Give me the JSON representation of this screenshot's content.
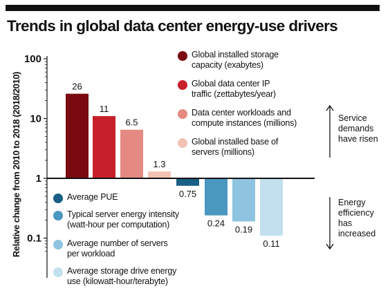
{
  "title": "Trends in global data center energy-use drivers",
  "y_axis_label": "Relative change from 2010 to 2018 (2018/2010)",
  "side_labels": {
    "up": "Service\ndemands\nhave risen",
    "down": "Energy\nefficiency\nhas\nincreased"
  },
  "chart_data": {
    "type": "bar",
    "title": "Trends in global data center energy-use drivers",
    "ylabel": "Relative change from 2010 to 2018 (2018/2010)",
    "xlabel": "",
    "yscale": "log",
    "baseline": 1,
    "ylim": [
      0.06,
      100
    ],
    "yticks": [
      100,
      10,
      1,
      0.1
    ],
    "ytick_labels": [
      "100",
      "10",
      "1",
      "0.1"
    ],
    "grid": false,
    "legend": "embedded",
    "categories": [
      "Global installed storage\ncapacity (exabytes)",
      "Global data center IP\ntraffic (zettabytes/year)",
      "Data center workloads and\ncompute instances (millions)",
      "Global installed base of\nservers (millions)",
      "Average PUE",
      "Typical server energy intensity\n(watt-hour per computation)",
      "Average number of servers\nper workload",
      "Average storage drive energy\nuse (kilowatt-hour/terabyte)"
    ],
    "values": [
      26,
      11,
      6.5,
      1.3,
      0.75,
      0.24,
      0.19,
      0.11
    ],
    "value_labels": [
      "26",
      "11",
      "6.5",
      "1.3",
      "0.75",
      "0.24",
      "0.19",
      "0.11"
    ],
    "colors": [
      "#7a0a12",
      "#c8202a",
      "#e58a82",
      "#f2c2b5",
      "#1a5f85",
      "#4a97c0",
      "#8ec4e0",
      "#c2e0ee"
    ]
  }
}
